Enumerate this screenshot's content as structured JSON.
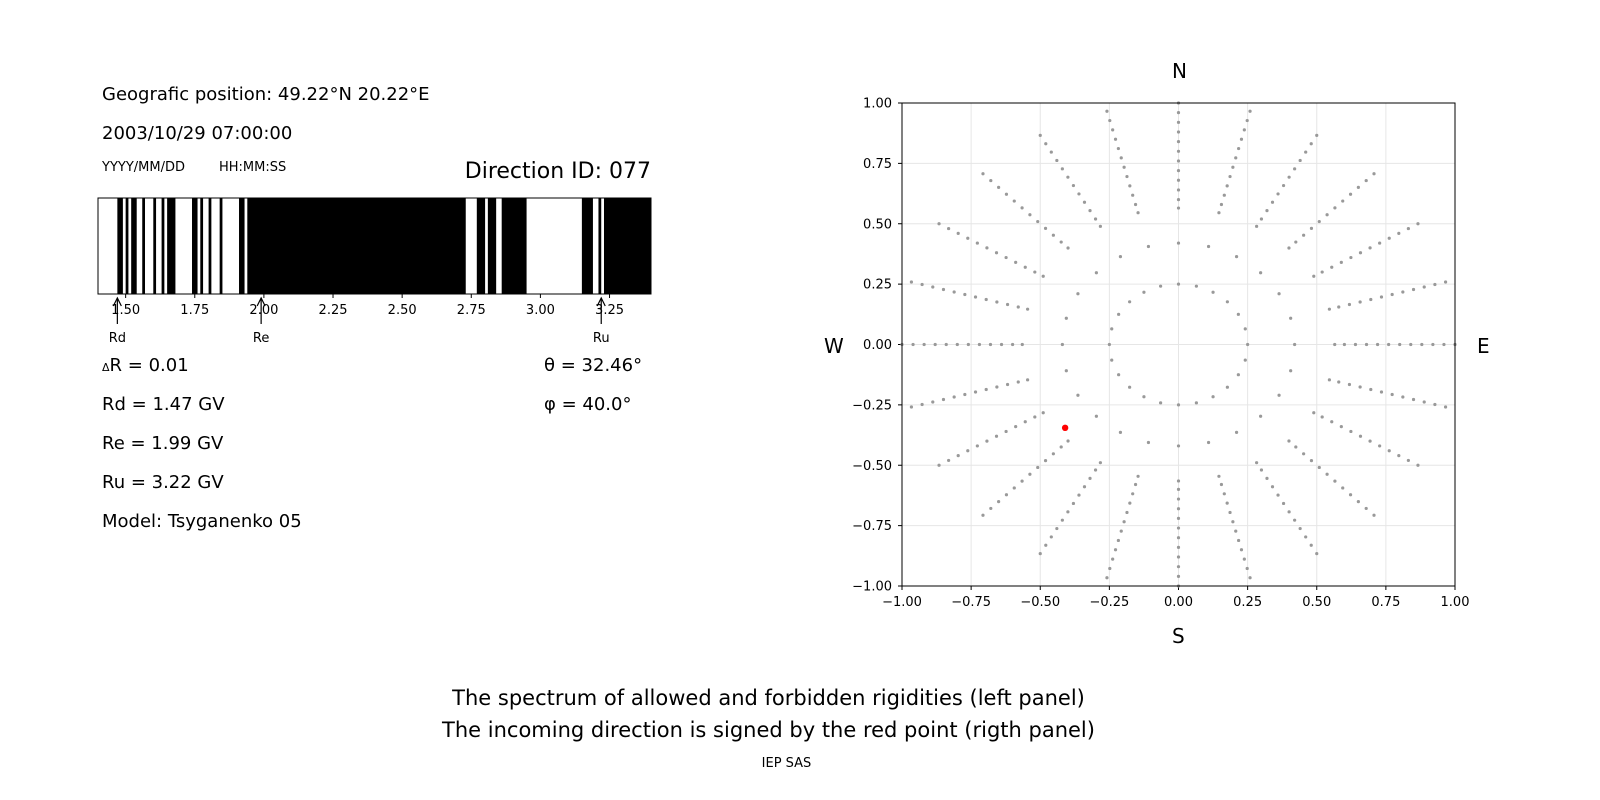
{
  "info": {
    "position": "Geografic position: 49.22°N 20.22°E",
    "datetime": "2003/10/29 07:00:00",
    "date_format": "YYYY/MM/DD",
    "time_format": "HH:MM:SS",
    "direction_id": "Direction ID: 077",
    "delta_r": "R = 0.01",
    "delta_symbol": "Δ",
    "rd": "Rd = 1.47 GV",
    "re": "Re = 1.99 GV",
    "ru": "Ru = 3.22 GV",
    "model": "Model: Tsyganenko 05",
    "theta": "θ = 32.46°",
    "phi": "φ = 40.0°"
  },
  "compass": {
    "n": "N",
    "s": "S",
    "w": "W",
    "e": "E"
  },
  "footer": {
    "line1": "The spectrum of allowed and forbidden rigidities (left panel)",
    "line2": "The incoming direction is signed by the red point (rigth panel)",
    "credit": "IEP SAS"
  },
  "colors": {
    "forbidden": "#000000",
    "allowed": "#ffffff",
    "grid_points": "#999999",
    "direction_point": "#ff0000"
  },
  "chart_data": [
    {
      "type": "heatmap",
      "name": "rigidity spectrum",
      "xlim": [
        1.4,
        3.4
      ],
      "xticks": [
        1.5,
        1.75,
        2.0,
        2.25,
        2.5,
        2.75,
        3.0,
        3.25
      ],
      "xtick_labels": [
        "1.50",
        "1.75",
        "2.00",
        "2.25",
        "2.50",
        "2.75",
        "3.00",
        "3.25"
      ],
      "forbidden_bands": [
        [
          1.47,
          1.49
        ],
        [
          1.5,
          1.51
        ],
        [
          1.52,
          1.54
        ],
        [
          1.56,
          1.57
        ],
        [
          1.6,
          1.61
        ],
        [
          1.63,
          1.64
        ],
        [
          1.65,
          1.68
        ],
        [
          1.74,
          1.76
        ],
        [
          1.77,
          1.78
        ],
        [
          1.8,
          1.81
        ],
        [
          1.84,
          1.85
        ],
        [
          1.91,
          1.93
        ],
        [
          1.94,
          2.73
        ],
        [
          2.77,
          2.8
        ],
        [
          2.81,
          2.84
        ],
        [
          2.86,
          2.95
        ],
        [
          3.15,
          3.19
        ],
        [
          3.21,
          3.22
        ],
        [
          3.23,
          3.4
        ]
      ],
      "markers": [
        {
          "label": "Rd",
          "value": 1.47
        },
        {
          "label": "Re",
          "value": 1.99
        },
        {
          "label": "Ru",
          "value": 3.22
        }
      ]
    },
    {
      "type": "scatter",
      "name": "asymptotic directions",
      "xlim": [
        -1.0,
        1.0
      ],
      "ylim": [
        -1.0,
        1.0
      ],
      "xticks": [
        -1.0,
        -0.75,
        -0.5,
        -0.25,
        0.0,
        0.25,
        0.5,
        0.75,
        1.0
      ],
      "yticks": [
        -1.0,
        -0.75,
        -0.5,
        -0.25,
        0.0,
        0.25,
        0.5,
        0.75,
        1.0
      ],
      "xtick_labels": [
        "−1.00",
        "−0.75",
        "−0.50",
        "−0.25",
        "0.00",
        "0.25",
        "0.50",
        "0.75",
        "1.00"
      ],
      "ytick_labels": [
        "−1.00",
        "−0.75",
        "−0.50",
        "−0.25",
        "0.00",
        "0.25",
        "0.50",
        "0.75",
        "1.00"
      ],
      "grid": true,
      "grid_pattern": {
        "center": [
          0.0,
          0.0
        ],
        "ring_radii": [
          0.25,
          0.42,
          0.565
        ],
        "ring_points": [
          24,
          24,
          24
        ],
        "spoke_count": 24,
        "spoke_r_start": 0.6,
        "spoke_r_end": 1.0,
        "spoke_points": 11
      },
      "highlight": {
        "x": -0.41,
        "y": -0.345
      }
    }
  ]
}
